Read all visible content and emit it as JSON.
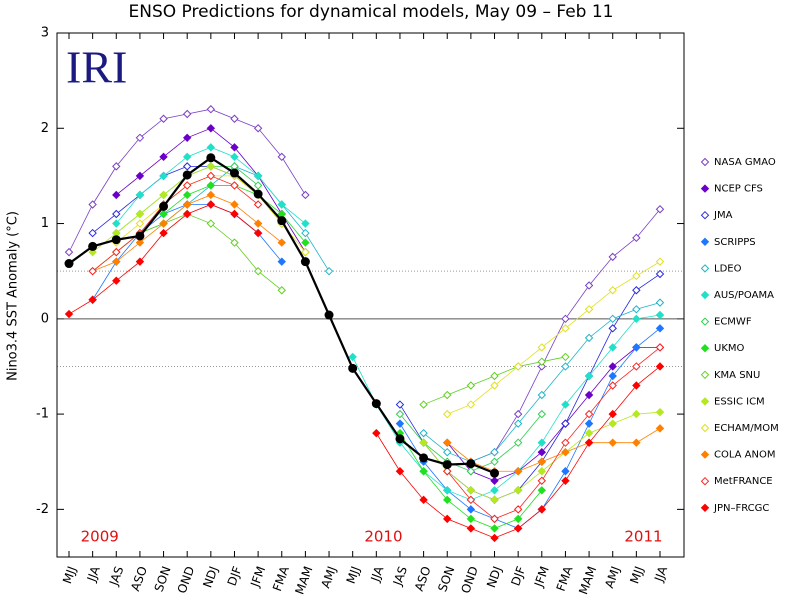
{
  "chart_data": {
    "type": "plume",
    "title": "ENSO Predictions for dynamical models, May 09 – Feb 11",
    "logo": "IRI",
    "y_label": "Nino3.4 SST Anomaly (°C)",
    "years": [
      "2009",
      "2010",
      "2011"
    ],
    "categories": [
      "MJJ",
      "JJA",
      "JAS",
      "ASO",
      "SON",
      "OND",
      "NDJ",
      "DJF",
      "JFM",
      "FMA",
      "MAM",
      "AMJ",
      "MJJ",
      "JJA",
      "JAS",
      "ASO",
      "SON",
      "OND",
      "NDJ",
      "DJF",
      "JFM",
      "FMA",
      "MAM",
      "AMJ",
      "MJJ",
      "JJA"
    ],
    "ylim": [
      -2.5,
      3
    ],
    "yticks": [
      -2,
      -1,
      0,
      1,
      2,
      3
    ],
    "reference_lines": [
      0.5,
      -0.5
    ],
    "observed": {
      "color": "#000000",
      "values": [
        0.58,
        0.76,
        0.83,
        0.87,
        1.18,
        1.51,
        1.69,
        1.53,
        1.31,
        1.03,
        0.6,
        0.04,
        -0.52,
        -0.89,
        -1.26,
        -1.46,
        -1.53,
        -1.52,
        -1.62,
        null,
        null,
        null,
        null,
        null,
        null,
        null
      ]
    },
    "series": [
      {
        "name": "NASA GMAO",
        "color": "#7a3fc4",
        "filled": false,
        "runs": [
          [
            0.7,
            1.2,
            1.6,
            1.9,
            2.1,
            2.15,
            2.2,
            2.1,
            2.0,
            1.7,
            1.3,
            null,
            null,
            null,
            null,
            null,
            null,
            null,
            null,
            null,
            null,
            null,
            null,
            null,
            null,
            null
          ],
          [
            null,
            null,
            null,
            null,
            null,
            null,
            null,
            null,
            null,
            null,
            null,
            null,
            null,
            null,
            null,
            null,
            null,
            -1.5,
            -1.4,
            -1.0,
            -0.5,
            0.0,
            0.35,
            0.65,
            0.85,
            1.15
          ]
        ]
      },
      {
        "name": "NCEP CFS",
        "color": "#6a00c8",
        "filled": true,
        "runs": [
          [
            null,
            null,
            1.3,
            1.5,
            1.7,
            1.9,
            2.0,
            1.8,
            1.5,
            1.1,
            0.7,
            null,
            null,
            null,
            null,
            null,
            null,
            null,
            null,
            null,
            null,
            null,
            null,
            null,
            null,
            null
          ],
          [
            null,
            null,
            null,
            null,
            null,
            null,
            null,
            null,
            null,
            null,
            null,
            null,
            null,
            null,
            null,
            null,
            -1.3,
            -1.6,
            -1.7,
            -1.6,
            -1.4,
            -1.1,
            -0.8,
            -0.5,
            -0.3,
            -0.3
          ]
        ]
      },
      {
        "name": "JMA",
        "color": "#2828e0",
        "filled": false,
        "runs": [
          [
            null,
            0.9,
            1.1,
            1.3,
            1.5,
            1.6,
            1.6,
            1.5,
            1.3,
            1.0,
            null,
            null,
            null,
            null,
            null,
            null,
            null,
            null,
            null,
            null,
            null,
            null,
            null,
            null,
            null,
            null
          ],
          [
            null,
            null,
            null,
            null,
            null,
            null,
            null,
            null,
            null,
            null,
            null,
            null,
            null,
            null,
            -0.9,
            -1.3,
            -1.6,
            -1.8,
            -1.9,
            -1.8,
            -1.5,
            -1.1,
            -0.6,
            -0.1,
            0.3,
            0.47
          ]
        ]
      },
      {
        "name": "SCRIPPS",
        "color": "#1e78ff",
        "filled": true,
        "runs": [
          [
            null,
            0.2,
            0.6,
            0.9,
            1.1,
            1.2,
            1.2,
            1.1,
            0.9,
            0.6,
            null,
            null,
            null,
            null,
            null,
            null,
            null,
            null,
            null,
            null,
            null,
            null,
            null,
            null,
            null,
            null
          ],
          [
            null,
            null,
            null,
            null,
            null,
            null,
            null,
            null,
            null,
            null,
            null,
            null,
            null,
            null,
            -1.1,
            -1.5,
            -1.8,
            -2.0,
            -2.1,
            -2.2,
            -2.0,
            -1.6,
            -1.1,
            -0.6,
            -0.3,
            -0.1
          ]
        ]
      },
      {
        "name": "LDEO",
        "color": "#20b4c8",
        "filled": false,
        "runs": [
          [
            null,
            null,
            null,
            0.9,
            1.0,
            1.2,
            1.4,
            1.6,
            1.5,
            1.2,
            0.9,
            0.5,
            null,
            null,
            null,
            null,
            null,
            null,
            null,
            null,
            null,
            null,
            null,
            null,
            null,
            null
          ],
          [
            null,
            null,
            null,
            null,
            null,
            null,
            null,
            null,
            null,
            null,
            null,
            null,
            null,
            null,
            null,
            -1.2,
            -1.4,
            -1.5,
            -1.4,
            -1.1,
            -0.8,
            -0.5,
            -0.2,
            0.0,
            0.1,
            0.17
          ]
        ]
      },
      {
        "name": "AUS/POAMA",
        "color": "#20e0c8",
        "filled": true,
        "runs": [
          [
            null,
            null,
            1.0,
            1.3,
            1.5,
            1.7,
            1.8,
            1.7,
            1.5,
            1.2,
            1.0,
            null,
            null,
            null,
            null,
            null,
            null,
            null,
            null,
            null,
            null,
            null,
            null,
            null,
            null,
            null
          ],
          [
            null,
            null,
            null,
            null,
            null,
            null,
            null,
            null,
            null,
            null,
            null,
            null,
            -0.4,
            -0.9,
            -1.3,
            -1.6,
            -1.8,
            -1.9,
            -1.8,
            -1.6,
            -1.3,
            -0.9,
            -0.6,
            -0.3,
            0.0,
            0.04
          ]
        ]
      },
      {
        "name": "ECMWF",
        "color": "#30d050",
        "filled": false,
        "runs": [
          [
            null,
            null,
            0.9,
            1.1,
            1.3,
            1.5,
            1.6,
            1.6,
            1.4,
            null,
            null,
            null,
            null,
            null,
            null,
            null,
            null,
            null,
            null,
            null,
            null,
            null,
            null,
            null,
            null,
            null
          ],
          [
            null,
            null,
            null,
            null,
            null,
            null,
            null,
            null,
            null,
            null,
            null,
            null,
            null,
            null,
            -1.0,
            -1.3,
            -1.5,
            -1.6,
            -1.5,
            -1.3,
            -1.0,
            null,
            null,
            null,
            null,
            null
          ]
        ]
      },
      {
        "name": "UKMO",
        "color": "#20e020",
        "filled": true,
        "runs": [
          [
            null,
            null,
            null,
            null,
            1.1,
            1.3,
            1.4,
            1.4,
            1.3,
            1.1,
            0.8,
            null,
            null,
            null,
            null,
            null,
            null,
            null,
            null,
            null,
            null,
            null,
            null,
            null,
            null,
            null
          ],
          [
            null,
            null,
            null,
            null,
            null,
            null,
            null,
            null,
            null,
            null,
            null,
            null,
            null,
            null,
            -1.2,
            -1.6,
            -1.9,
            -2.1,
            -2.2,
            -2.1,
            -1.8,
            null,
            null,
            null,
            null,
            null
          ]
        ]
      },
      {
        "name": "KMA SNU",
        "color": "#60d020",
        "filled": false,
        "runs": [
          [
            null,
            0.5,
            0.7,
            0.9,
            1.0,
            1.1,
            1.0,
            0.8,
            0.5,
            0.3,
            null,
            null,
            null,
            null,
            null,
            null,
            null,
            null,
            null,
            null,
            null,
            null,
            null,
            null,
            null,
            null
          ],
          [
            null,
            null,
            null,
            null,
            null,
            null,
            null,
            null,
            null,
            null,
            null,
            null,
            null,
            null,
            null,
            -0.9,
            -0.8,
            -0.7,
            -0.6,
            -0.5,
            -0.45,
            -0.4,
            null,
            null,
            null,
            null
          ]
        ]
      },
      {
        "name": "ESSIC ICM",
        "color": "#b4e820",
        "filled": true,
        "runs": [
          [
            null,
            0.7,
            0.9,
            1.1,
            1.3,
            1.5,
            1.6,
            1.5,
            1.3,
            1.0,
            null,
            null,
            null,
            null,
            null,
            null,
            null,
            null,
            null,
            null,
            null,
            null,
            null,
            null,
            null,
            null
          ],
          [
            null,
            null,
            null,
            null,
            null,
            null,
            null,
            null,
            null,
            null,
            null,
            null,
            null,
            null,
            null,
            -1.3,
            -1.6,
            -1.8,
            -1.9,
            -1.8,
            -1.6,
            -1.4,
            -1.2,
            -1.1,
            -1.0,
            -0.98
          ]
        ]
      },
      {
        "name": "ECHAM/MOM",
        "color": "#e0e020",
        "filled": false,
        "runs": [
          [
            null,
            null,
            0.8,
            1.0,
            1.2,
            1.4,
            1.5,
            1.5,
            1.3,
            1.0,
            0.7,
            null,
            null,
            null,
            null,
            null,
            null,
            null,
            null,
            null,
            null,
            null,
            null,
            null,
            null,
            null
          ],
          [
            null,
            null,
            null,
            null,
            null,
            null,
            null,
            null,
            null,
            null,
            null,
            null,
            null,
            null,
            null,
            null,
            -1.0,
            -0.9,
            -0.7,
            -0.5,
            -0.3,
            -0.1,
            0.1,
            0.3,
            0.45,
            0.6
          ]
        ]
      },
      {
        "name": "COLA ANOM",
        "color": "#ff8000",
        "filled": true,
        "runs": [
          [
            null,
            0.5,
            0.6,
            0.8,
            1.0,
            1.2,
            1.3,
            1.2,
            1.0,
            0.8,
            null,
            null,
            null,
            null,
            null,
            null,
            null,
            null,
            null,
            null,
            null,
            null,
            null,
            null,
            null,
            null
          ],
          [
            null,
            null,
            null,
            null,
            null,
            null,
            null,
            null,
            null,
            null,
            null,
            null,
            null,
            null,
            null,
            null,
            -1.3,
            -1.5,
            -1.6,
            -1.6,
            -1.5,
            -1.4,
            -1.3,
            -1.3,
            -1.3,
            -1.15
          ]
        ]
      },
      {
        "name": "MetFRANCE",
        "color": "#ff2020",
        "filled": false,
        "runs": [
          [
            null,
            0.5,
            0.7,
            0.9,
            1.2,
            1.4,
            1.5,
            1.4,
            1.2,
            null,
            null,
            null,
            null,
            null,
            null,
            null,
            null,
            null,
            null,
            null,
            null,
            null,
            null,
            null,
            null,
            null
          ],
          [
            null,
            null,
            null,
            null,
            null,
            null,
            null,
            null,
            null,
            null,
            null,
            null,
            null,
            null,
            null,
            null,
            -1.6,
            -1.9,
            -2.1,
            -2.0,
            -1.7,
            -1.3,
            -1.0,
            -0.7,
            -0.5,
            -0.3
          ]
        ]
      },
      {
        "name": "JPN–FRCGC",
        "color": "#ff0000",
        "filled": true,
        "runs": [
          [
            0.05,
            0.2,
            0.4,
            0.6,
            0.9,
            1.1,
            1.2,
            1.1,
            0.9,
            null,
            null,
            null,
            null,
            null,
            null,
            null,
            null,
            null,
            null,
            null,
            null,
            null,
            null,
            null,
            null,
            null
          ],
          [
            null,
            null,
            null,
            null,
            null,
            null,
            null,
            null,
            null,
            null,
            null,
            null,
            null,
            -1.2,
            -1.6,
            -1.9,
            -2.1,
            -2.2,
            -2.3,
            -2.2,
            -2.0,
            -1.7,
            -1.3,
            -1.0,
            -0.7,
            -0.5
          ]
        ]
      }
    ]
  }
}
